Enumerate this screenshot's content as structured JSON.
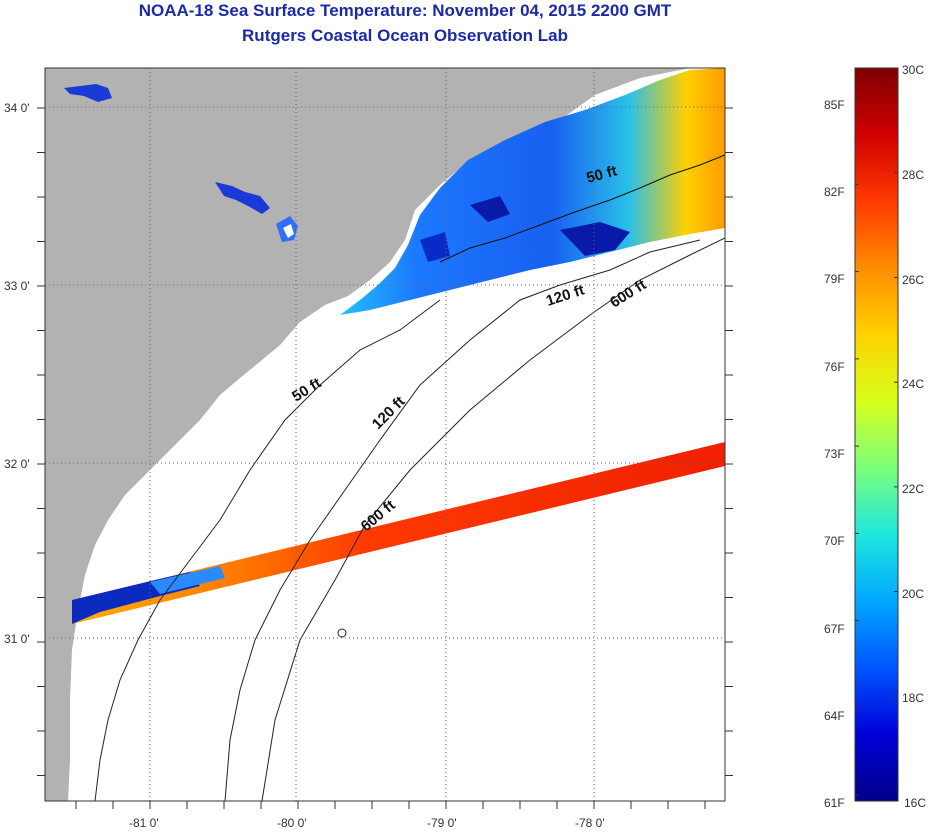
{
  "title": {
    "line1": "NOAA-18 Sea Surface Temperature:  November 04, 2015 2200 GMT",
    "line2": "Rutgers Coastal Ocean Observation Lab"
  },
  "map": {
    "lat_labels": [
      "34 0'",
      "33 0'",
      "32 0'",
      "31 0'"
    ],
    "lon_labels": [
      "-81 0'",
      "-80 0'",
      "-79 0'",
      "-78 0'"
    ],
    "land_color": "#b2b2b2",
    "ocean_color": "#ffffff",
    "grid": "dotted",
    "contours": [
      {
        "label": "50 ft",
        "depth_ft": 50
      },
      {
        "label": "50 ft",
        "depth_ft": 50
      },
      {
        "label": "120 ft",
        "depth_ft": 120
      },
      {
        "label": "120 ft",
        "depth_ft": 120
      },
      {
        "label": "600 ft",
        "depth_ft": 600
      },
      {
        "label": "600 ft",
        "depth_ft": 600
      }
    ]
  },
  "colorbar": {
    "fahrenheit_labels": [
      "85F",
      "82F",
      "79F",
      "76F",
      "73F",
      "70F",
      "67F",
      "64F",
      "61F"
    ],
    "celsius_labels": [
      "30C",
      "28C",
      "26C",
      "24C",
      "22C",
      "20C",
      "18C",
      "16C"
    ],
    "min_c": 16,
    "max_c": 30,
    "colors": [
      "#7f0000",
      "#d10000",
      "#ff3a00",
      "#ff8c00",
      "#ffd200",
      "#d6ff1a",
      "#7cff7a",
      "#1fe7dd",
      "#00a8ff",
      "#0055ff",
      "#0000d8",
      "#00008a"
    ]
  }
}
